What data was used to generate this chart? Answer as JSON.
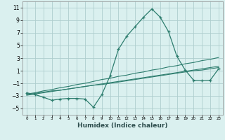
{
  "x": [
    0,
    1,
    2,
    3,
    4,
    5,
    6,
    7,
    8,
    9,
    10,
    11,
    12,
    13,
    14,
    15,
    16,
    17,
    18,
    19,
    20,
    21,
    22,
    23
  ],
  "y_main": [
    -2.5,
    -2.8,
    -3.2,
    -3.7,
    -3.5,
    -3.4,
    -3.4,
    -3.5,
    -4.8,
    -2.8,
    0.2,
    4.4,
    6.5,
    8.0,
    9.5,
    10.8,
    9.5,
    7.2,
    3.3,
    1.1,
    -0.5,
    -0.6,
    -0.5,
    1.3
  ],
  "trend1": [
    -2.7,
    -2.5,
    -2.2,
    -2.0,
    -1.7,
    -1.5,
    -1.2,
    -1.0,
    -0.7,
    -0.4,
    -0.2,
    0.1,
    0.3,
    0.6,
    0.8,
    1.1,
    1.3,
    1.6,
    1.8,
    2.1,
    2.3,
    2.6,
    2.8,
    3.1
  ],
  "trend2": [
    -2.9,
    -2.7,
    -2.5,
    -2.3,
    -2.1,
    -1.9,
    -1.7,
    -1.5,
    -1.3,
    -1.1,
    -0.9,
    -0.7,
    -0.5,
    -0.3,
    -0.1,
    0.1,
    0.3,
    0.5,
    0.7,
    0.9,
    1.1,
    1.3,
    1.5,
    1.7
  ],
  "trend3": [
    -2.8,
    -2.6,
    -2.4,
    -2.2,
    -2.1,
    -1.9,
    -1.7,
    -1.5,
    -1.3,
    -1.2,
    -1.0,
    -0.8,
    -0.6,
    -0.4,
    -0.2,
    0.0,
    0.2,
    0.4,
    0.6,
    0.8,
    1.0,
    1.1,
    1.3,
    1.5
  ],
  "line_color": "#2d7d6e",
  "bg_color": "#daf0ef",
  "grid_color": "#aecece",
  "xlabel": "Humidex (Indice chaleur)",
  "ylim": [
    -6,
    12
  ],
  "xlim": [
    -0.5,
    23.5
  ],
  "yticks": [
    -5,
    -3,
    -1,
    1,
    3,
    5,
    7,
    9,
    11
  ],
  "xtick_labels": [
    "0",
    "1",
    "2",
    "3",
    "4",
    "5",
    "6",
    "7",
    "8",
    "9",
    "10",
    "11",
    "12",
    "13",
    "14",
    "15",
    "16",
    "17",
    "18",
    "19",
    "20",
    "21",
    "22",
    "23"
  ]
}
